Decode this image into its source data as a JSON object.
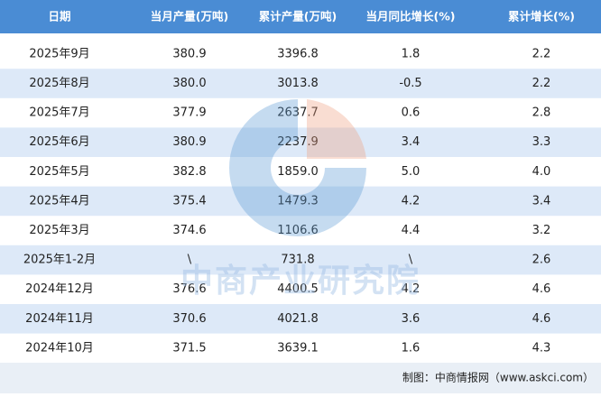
{
  "table": {
    "header": [
      "日期",
      "当月产量(万吨)",
      "累计产量(万吨)",
      "当月同比增长(%)",
      "累计增长(%)"
    ],
    "rows": [
      [
        "2025年9月",
        "380.9",
        "3396.8",
        "1.8",
        "2.2"
      ],
      [
        "2025年8月",
        "380.0",
        "3013.8",
        "-0.5",
        "2.2"
      ],
      [
        "2025年7月",
        "377.9",
        "2637.7",
        "0.6",
        "2.8"
      ],
      [
        "2025年6月",
        "380.9",
        "2237.9",
        "3.4",
        "3.3"
      ],
      [
        "2025年5月",
        "382.8",
        "1859.0",
        "5.0",
        "4.0"
      ],
      [
        "2025年4月",
        "375.4",
        "1479.3",
        "4.2",
        "3.4"
      ],
      [
        "2025年3月",
        "374.6",
        "1106.6",
        "4.4",
        "3.2"
      ],
      [
        "2025年1-2月",
        "\\",
        "731.8",
        "\\",
        "2.6"
      ],
      [
        "2024年12月",
        "376.6",
        "4400.5",
        "4.2",
        "4.6"
      ],
      [
        "2024年11月",
        "370.6",
        "4021.8",
        "3.6",
        "4.6"
      ],
      [
        "2024年10月",
        "371.5",
        "3639.1",
        "1.6",
        "4.3"
      ]
    ]
  },
  "watermark": "中商产业研究院",
  "footer": "制图：中商情报网（www.askci.com）"
}
